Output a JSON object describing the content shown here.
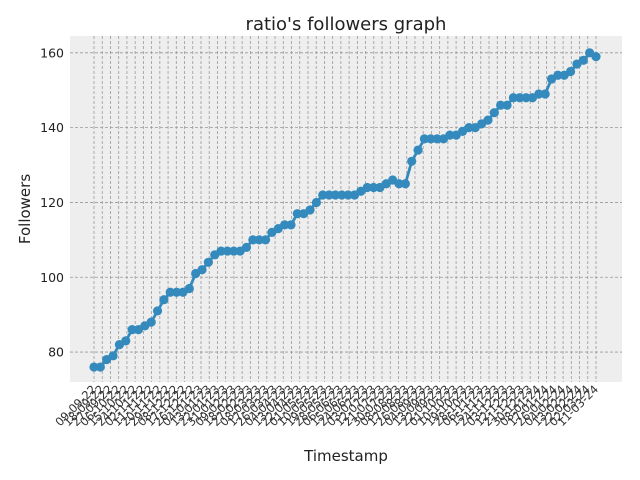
{
  "chart_data": {
    "type": "line",
    "title": "ratio's followers graph",
    "xlabel": "Timestamp",
    "ylabel": "Followers",
    "ylim": [
      72,
      164.5
    ],
    "yticks": [
      80,
      100,
      120,
      140,
      160
    ],
    "grid": true,
    "marker": "circle",
    "colors": {
      "line": "#348ABD",
      "background": "#EEEEEE",
      "grid": "#999999"
    },
    "x_tick_labels": [
      "09-09-22",
      "18-09-22",
      "27-09-22",
      "06-10-22",
      "15-10-22",
      "24-10-22",
      "02-11-22",
      "11-11-22",
      "20-11-22",
      "29-11-22",
      "08-12-22",
      "17-12-22",
      "26-12-22",
      "04-01-23",
      "13-01-23",
      "22-01-23",
      "31-01-23",
      "09-02-23",
      "18-02-23",
      "27-02-23",
      "08-03-23",
      "17-03-23",
      "26-03-23",
      "04-04-23",
      "13-04-23",
      "22-04-23",
      "01-05-23",
      "10-05-23",
      "19-05-23",
      "28-05-23",
      "06-06-23",
      "15-06-23",
      "24-06-23",
      "03-07-23",
      "12-07-23",
      "21-07-23",
      "30-07-23",
      "08-08-23",
      "17-08-23",
      "26-08-23",
      "04-09-23",
      "13-09-23",
      "22-09-23",
      "01-10-23",
      "10-10-23",
      "19-10-23",
      "28-10-23",
      "06-11-23",
      "15-11-23",
      "24-11-23",
      "03-12-23",
      "12-12-23",
      "21-12-23",
      "30-12-23",
      "08-01-24",
      "17-01-24",
      "26-01-24",
      "04-02-24",
      "13-02-24",
      "22-02-24",
      "02-03-24",
      "11-03-24"
    ],
    "series": [
      {
        "values": [
          76,
          76,
          78,
          79,
          82,
          83,
          86,
          86,
          87,
          88,
          91,
          94,
          96,
          96,
          96,
          97,
          101,
          102,
          104,
          106,
          107,
          107,
          107,
          107,
          108,
          110,
          110,
          110,
          112,
          113,
          114,
          114,
          117,
          117,
          118,
          120,
          122,
          122,
          122,
          122,
          122,
          122,
          123,
          124,
          124,
          124,
          125,
          126,
          125,
          125,
          131,
          134,
          137,
          137,
          137,
          137,
          138,
          138,
          139,
          140,
          140,
          141,
          142,
          144,
          146,
          146,
          148,
          148,
          148,
          148,
          149,
          149,
          153,
          154,
          154,
          155,
          157,
          158,
          160,
          159
        ]
      }
    ]
  }
}
